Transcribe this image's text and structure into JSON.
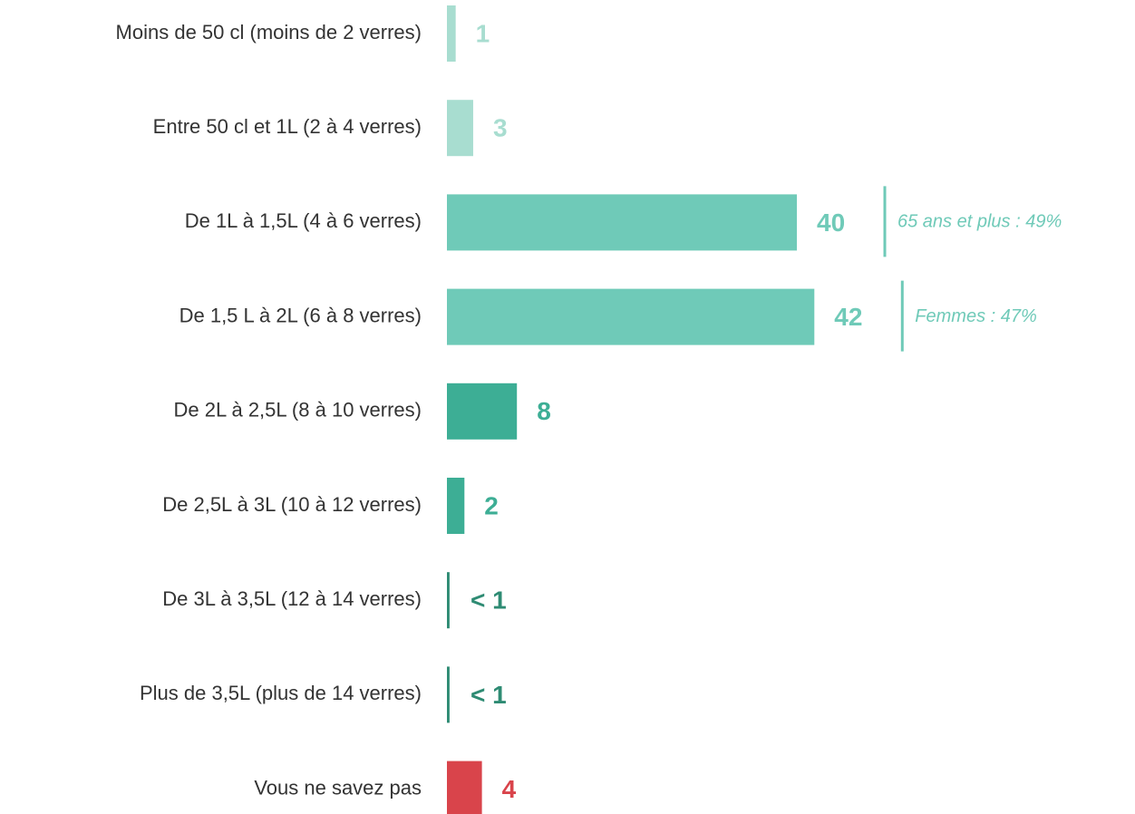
{
  "chart_data": {
    "type": "bar",
    "orientation": "horizontal",
    "categories": [
      "Moins de 50 cl (moins de 2 verres)",
      "Entre 50 cl et 1L (2 à 4 verres)",
      "De 1L à 1,5L (4 à 6 verres)",
      "De 1,5 L à 2L (6 à 8 verres)",
      "De 2L à 2,5L (8 à 10 verres)",
      "De 2,5L à 3L (10 à 12 verres)",
      "De 3L à 3,5L (12 à 14 verres)",
      "Plus de 3,5L (plus de 14 verres)",
      "Vous ne savez pas"
    ],
    "values": [
      1,
      3,
      40,
      42,
      8,
      2,
      0.3,
      0.3,
      4
    ],
    "value_labels": [
      "1",
      "3",
      "40",
      "42",
      "8",
      "2",
      "< 1",
      "< 1",
      "4"
    ],
    "colors": [
      "#a8ddd0",
      "#a8ddd0",
      "#6fcab8",
      "#6fcab8",
      "#3dae95",
      "#3dae95",
      "#2e8b73",
      "#2e8b73",
      "#d9444b"
    ],
    "annotations": [
      {
        "category": "De 1L à 1,5L (4 à 6 verres)",
        "text": "65 ans et plus : 49%"
      },
      {
        "category": "De 1,5 L à 2L (6 à 8 verres)",
        "text": "Femmes : 47%"
      }
    ],
    "annotation_color": "#6fcab8"
  }
}
